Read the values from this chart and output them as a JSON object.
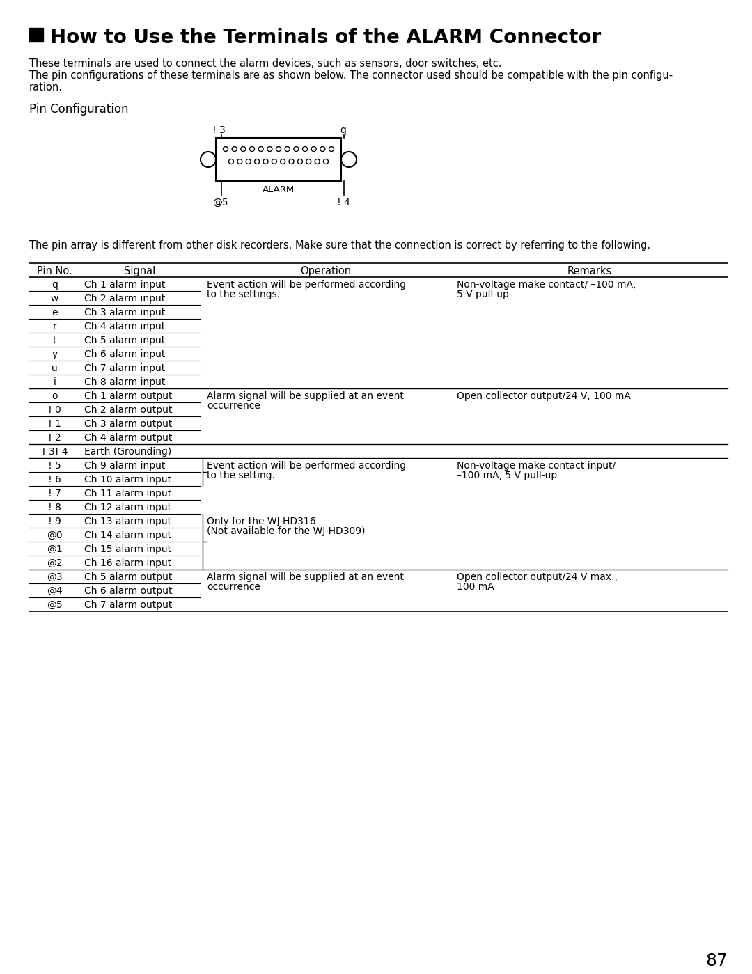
{
  "title": "How to Use the Terminals of the ALARM Connector",
  "intro_line1": "These terminals are used to connect the alarm devices, such as sensors, door switches, etc.",
  "intro_line2": "The pin configurations of these terminals are as shown below. The connector used should be compatible with the pin configu-",
  "intro_line3": "ration.",
  "pin_config_title": "Pin Configuration",
  "connector_label": "ALARM",
  "connector_top_left": "! 3",
  "connector_top_right": "q",
  "connector_bottom_left": "@5",
  "connector_bottom_right": "! 4",
  "pin_array_note": "The pin array is different from other disk recorders. Make sure that the connection is correct by referring to the following.",
  "table_headers": [
    "Pin No.",
    "Signal",
    "Operation",
    "Remarks"
  ],
  "table_rows": [
    [
      "q",
      "Ch 1 alarm input",
      "Event action will be performed according\nto the settings.",
      "Non-voltage make contact/ –100 mA,\n5 V pull-up"
    ],
    [
      "w",
      "Ch 2 alarm input",
      "",
      ""
    ],
    [
      "e",
      "Ch 3 alarm input",
      "",
      ""
    ],
    [
      "r",
      "Ch 4 alarm input",
      "",
      ""
    ],
    [
      "t",
      "Ch 5 alarm input",
      "",
      ""
    ],
    [
      "y",
      "Ch 6 alarm input",
      "",
      ""
    ],
    [
      "u",
      "Ch 7 alarm input",
      "",
      ""
    ],
    [
      "i",
      "Ch 8 alarm input",
      "",
      ""
    ],
    [
      "o",
      "Ch 1 alarm output",
      "Alarm signal will be supplied at an event\noccurrence",
      "Open collector output/24 V, 100 mA"
    ],
    [
      "! 0",
      "Ch 2 alarm output",
      "",
      ""
    ],
    [
      "! 1",
      "Ch 3 alarm output",
      "",
      ""
    ],
    [
      "! 2",
      "Ch 4 alarm output",
      "",
      ""
    ],
    [
      "! 3! 4",
      "Earth (Grounding)",
      "",
      ""
    ],
    [
      "! 5",
      "Ch 9 alarm input",
      "Event action will be performed according\nto the setting.",
      "Non-voltage make contact input/\n–100 mA, 5 V pull-up"
    ],
    [
      "! 6",
      "Ch 10 alarm input",
      "",
      ""
    ],
    [
      "! 7",
      "Ch 11 alarm input",
      "",
      ""
    ],
    [
      "! 8",
      "Ch 12 alarm input",
      "",
      ""
    ],
    [
      "! 9",
      "Ch 13 alarm input",
      "Only for the WJ-HD316\n(Not available for the WJ-HD309)",
      ""
    ],
    [
      "@0",
      "Ch 14 alarm input",
      "",
      ""
    ],
    [
      "@1",
      "Ch 15 alarm input",
      "",
      ""
    ],
    [
      "@2",
      "Ch 16 alarm input",
      "",
      ""
    ],
    [
      "@3",
      "Ch 5 alarm output",
      "Alarm signal will be supplied at an event\noccurrence",
      "Open collector output/24 V max.,\n100 mA"
    ],
    [
      "@4",
      "Ch 6 alarm output",
      "",
      ""
    ],
    [
      "@5",
      "Ch 7 alarm output",
      "",
      ""
    ]
  ],
  "page_number": "87",
  "bg_color": "#ffffff",
  "text_color": "#000000"
}
